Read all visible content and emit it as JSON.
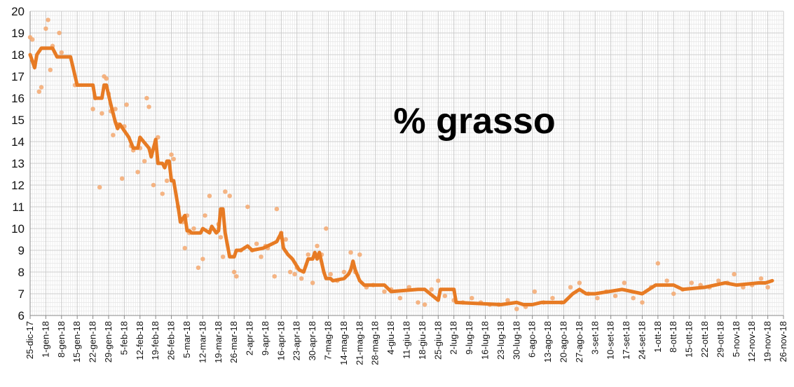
{
  "chart_data": {
    "type": "scatter",
    "title": "% grasso",
    "xlabel": "",
    "ylabel": "",
    "ylim": [
      6,
      20
    ],
    "xlim": [
      "2017-12-25",
      "2018-11-26"
    ],
    "grid": true,
    "y_ticks": [
      "6",
      "7",
      "8",
      "9",
      "10",
      "11",
      "12",
      "13",
      "14",
      "15",
      "16",
      "17",
      "18",
      "19",
      "20"
    ],
    "x_tick_dates": [
      "2017-12-25",
      "2018-01-01",
      "2018-01-08",
      "2018-01-15",
      "2018-01-22",
      "2018-01-29",
      "2018-02-05",
      "2018-02-12",
      "2018-02-19",
      "2018-02-26",
      "2018-03-05",
      "2018-03-12",
      "2018-03-19",
      "2018-03-26",
      "2018-04-02",
      "2018-04-09",
      "2018-04-16",
      "2018-04-23",
      "2018-04-30",
      "2018-05-07",
      "2018-05-14",
      "2018-05-21",
      "2018-05-28",
      "2018-06-04",
      "2018-06-11",
      "2018-06-18",
      "2018-06-25",
      "2018-07-02",
      "2018-07-09",
      "2018-07-16",
      "2018-07-23",
      "2018-07-30",
      "2018-08-06",
      "2018-08-13",
      "2018-08-20",
      "2018-08-27",
      "2018-09-03",
      "2018-09-10",
      "2018-09-17",
      "2018-09-24",
      "2018-10-01",
      "2018-10-08",
      "2018-10-15",
      "2018-10-22",
      "2018-10-29",
      "2018-11-05",
      "2018-11-12",
      "2018-11-19",
      "2018-11-26"
    ],
    "x_tick_labels": [
      "25-dic-17",
      "1-gen-18",
      "8-gen-18",
      "15-gen-18",
      "22-gen-18",
      "29-gen-18",
      "5-feb-18",
      "12-feb-18",
      "19-feb-18",
      "26-feb-18",
      "5-mar-18",
      "12-mar-18",
      "19-mar-18",
      "26-mar-18",
      "2-apr-18",
      "9-apr-18",
      "16-apr-18",
      "23-apr-18",
      "30-apr-18",
      "7-mag-18",
      "14-mag-18",
      "21-mag-18",
      "28-mag-18",
      "4-giu-18",
      "11-giu-18",
      "18-giu-18",
      "25-giu-18",
      "2-lug-18",
      "9-lug-18",
      "16-lug-18",
      "23-lug-18",
      "30-lug-18",
      "6-ago-18",
      "13-ago-18",
      "20-ago-18",
      "27-ago-18",
      "3-set-18",
      "10-set-18",
      "17-set-18",
      "24-set-18",
      "1-ott-18",
      "8-ott-18",
      "15-ott-18",
      "22-ott-18",
      "29-ott-18",
      "5-nov-18",
      "12-nov-18",
      "19-nov-18",
      "26-nov-18"
    ],
    "series": [
      {
        "kind": "points",
        "color": "#f5a86e",
        "x": [
          "2017-12-25",
          "2017-12-26",
          "2017-12-27",
          "2017-12-29",
          "2017-12-30",
          "2018-01-01",
          "2018-01-02",
          "2018-01-03",
          "2018-01-04",
          "2018-01-07",
          "2018-01-08",
          "2018-01-14",
          "2018-01-22",
          "2018-01-23",
          "2018-01-25",
          "2018-01-26",
          "2018-01-27",
          "2018-01-28",
          "2018-01-29",
          "2018-01-30",
          "2018-01-31",
          "2018-02-01",
          "2018-02-02",
          "2018-02-04",
          "2018-02-05",
          "2018-02-06",
          "2018-02-08",
          "2018-02-09",
          "2018-02-11",
          "2018-02-12",
          "2018-02-14",
          "2018-02-15",
          "2018-02-16",
          "2018-02-18",
          "2018-02-19",
          "2018-02-20",
          "2018-02-22",
          "2018-02-24",
          "2018-02-26",
          "2018-02-27",
          "2018-03-01",
          "2018-03-03",
          "2018-03-04",
          "2018-03-05",
          "2018-03-06",
          "2018-03-08",
          "2018-03-10",
          "2018-03-12",
          "2018-03-13",
          "2018-03-15",
          "2018-03-19",
          "2018-03-20",
          "2018-03-21",
          "2018-03-22",
          "2018-03-24",
          "2018-03-26",
          "2018-03-27",
          "2018-03-29",
          "2018-04-01",
          "2018-04-03",
          "2018-04-05",
          "2018-04-07",
          "2018-04-09",
          "2018-04-10",
          "2018-04-13",
          "2018-04-14",
          "2018-04-16",
          "2018-04-18",
          "2018-04-20",
          "2018-04-22",
          "2018-04-23",
          "2018-04-25",
          "2018-04-28",
          "2018-04-30",
          "2018-05-02",
          "2018-05-04",
          "2018-05-06",
          "2018-05-08",
          "2018-05-11",
          "2018-05-14",
          "2018-05-17",
          "2018-05-19",
          "2018-05-21",
          "2018-05-24",
          "2018-05-27",
          "2018-06-01",
          "2018-06-04",
          "2018-06-08",
          "2018-06-12",
          "2018-06-16",
          "2018-06-19",
          "2018-06-22",
          "2018-06-25",
          "2018-06-28",
          "2018-07-02",
          "2018-07-06",
          "2018-07-10",
          "2018-07-14",
          "2018-07-18",
          "2018-07-22",
          "2018-07-26",
          "2018-07-30",
          "2018-08-03",
          "2018-08-07",
          "2018-08-11",
          "2018-08-15",
          "2018-08-19",
          "2018-08-23",
          "2018-08-27",
          "2018-08-31",
          "2018-09-04",
          "2018-09-08",
          "2018-09-12",
          "2018-09-16",
          "2018-09-20",
          "2018-09-24",
          "2018-09-28",
          "2018-10-01",
          "2018-10-05",
          "2018-10-08",
          "2018-10-12",
          "2018-10-16",
          "2018-10-20",
          "2018-10-24",
          "2018-10-28",
          "2018-11-01",
          "2018-11-04",
          "2018-11-08",
          "2018-11-12",
          "2018-11-16",
          "2018-11-19"
        ],
        "y": [
          18.8,
          18.7,
          17.5,
          16.3,
          16.5,
          19.2,
          19.6,
          17.3,
          18.4,
          19.0,
          18.1,
          16.6,
          15.5,
          16.0,
          11.9,
          15.3,
          17.0,
          16.9,
          16.2,
          15.4,
          14.3,
          15.5,
          14.8,
          12.3,
          14.7,
          15.7,
          13.8,
          13.6,
          12.6,
          13.7,
          13.1,
          16.0,
          15.6,
          12.0,
          13.8,
          14.2,
          11.6,
          12.2,
          13.4,
          13.2,
          11.0,
          10.3,
          9.1,
          10.6,
          9.8,
          10.0,
          8.2,
          8.6,
          10.6,
          11.5,
          10.2,
          9.6,
          8.7,
          11.7,
          11.5,
          8.0,
          7.8,
          9.0,
          11.0,
          9.0,
          9.3,
          8.7,
          9.2,
          9.1,
          7.8,
          10.9,
          9.8,
          9.5,
          8.0,
          7.9,
          8.2,
          7.7,
          8.8,
          7.5,
          9.2,
          8.8,
          10.0,
          7.9,
          7.6,
          8.0,
          8.9,
          8.0,
          8.8,
          7.3,
          7.4,
          7.1,
          7.2,
          6.8,
          7.3,
          6.6,
          6.5,
          7.2,
          7.6,
          6.9,
          6.7,
          6.6,
          6.8,
          6.6,
          6.5,
          6.5,
          6.7,
          6.3,
          6.4,
          7.1,
          6.6,
          6.8,
          6.6,
          7.3,
          7.5,
          7.0,
          6.8,
          7.1,
          6.9,
          7.5,
          6.8,
          6.6,
          7.3,
          8.4,
          7.6,
          7.0,
          7.2,
          7.5,
          7.4,
          7.3,
          7.6,
          7.5,
          7.9,
          7.3,
          7.4,
          7.7,
          7.3
        ]
      },
      {
        "kind": "line",
        "color": "#e77b24",
        "x": [
          "2017-12-25",
          "2017-12-27",
          "2017-12-28",
          "2017-12-30",
          "2018-01-04",
          "2018-01-06",
          "2018-01-12",
          "2018-01-15",
          "2018-01-22",
          "2018-01-23",
          "2018-01-26",
          "2018-01-27",
          "2018-01-28",
          "2018-01-30",
          "2018-02-01",
          "2018-02-02",
          "2018-02-03",
          "2018-02-05",
          "2018-02-07",
          "2018-02-09",
          "2018-02-11",
          "2018-02-12",
          "2018-02-16",
          "2018-02-17",
          "2018-02-19",
          "2018-02-20",
          "2018-02-22",
          "2018-02-23",
          "2018-02-24",
          "2018-02-25",
          "2018-02-26",
          "2018-02-27",
          "2018-03-01",
          "2018-03-02",
          "2018-03-04",
          "2018-03-05",
          "2018-03-06",
          "2018-03-07",
          "2018-03-11",
          "2018-03-12",
          "2018-03-15",
          "2018-03-16",
          "2018-03-18",
          "2018-03-19",
          "2018-03-20",
          "2018-03-21",
          "2018-03-22",
          "2018-03-24",
          "2018-03-26",
          "2018-03-27",
          "2018-03-29",
          "2018-04-01",
          "2018-04-03",
          "2018-04-08",
          "2018-04-12",
          "2018-04-14",
          "2018-04-16",
          "2018-04-17",
          "2018-04-19",
          "2018-04-21",
          "2018-04-24",
          "2018-04-26",
          "2018-04-28",
          "2018-04-30",
          "2018-05-01",
          "2018-05-02",
          "2018-05-03",
          "2018-05-05",
          "2018-05-06",
          "2018-05-08",
          "2018-05-09",
          "2018-05-14",
          "2018-05-16",
          "2018-05-17",
          "2018-05-18",
          "2018-05-19",
          "2018-05-21",
          "2018-05-23",
          "2018-06-01",
          "2018-06-04",
          "2018-06-16",
          "2018-06-19",
          "2018-06-25",
          "2018-06-26",
          "2018-07-02",
          "2018-07-03",
          "2018-07-23",
          "2018-07-30",
          "2018-08-02",
          "2018-08-06",
          "2018-08-10",
          "2018-08-20",
          "2018-08-24",
          "2018-08-27",
          "2018-08-30",
          "2018-09-03",
          "2018-09-15",
          "2018-09-24",
          "2018-09-30",
          "2018-10-08",
          "2018-10-12",
          "2018-10-22",
          "2018-10-31",
          "2018-11-05",
          "2018-11-15",
          "2018-11-18",
          "2018-11-21"
        ],
        "y": [
          18.0,
          17.4,
          18.0,
          18.3,
          18.3,
          17.9,
          17.9,
          16.6,
          16.6,
          16.0,
          16.0,
          16.6,
          16.6,
          15.7,
          14.9,
          14.6,
          14.8,
          14.5,
          14.2,
          13.7,
          13.7,
          14.2,
          13.7,
          13.3,
          14.1,
          13.0,
          13.0,
          12.8,
          13.1,
          13.1,
          12.2,
          12.2,
          11.0,
          10.3,
          10.6,
          9.9,
          9.9,
          9.8,
          9.8,
          10.0,
          9.8,
          10.1,
          9.8,
          9.9,
          10.9,
          10.9,
          9.8,
          8.7,
          8.7,
          9.0,
          9.0,
          9.2,
          9.0,
          9.1,
          9.3,
          9.4,
          9.8,
          9.1,
          8.8,
          8.6,
          8.1,
          8.0,
          8.6,
          8.6,
          8.9,
          8.6,
          8.9,
          8.0,
          7.7,
          7.7,
          7.6,
          7.7,
          7.9,
          8.1,
          8.5,
          8.1,
          7.6,
          7.4,
          7.4,
          7.1,
          7.2,
          7.2,
          6.7,
          7.2,
          7.2,
          6.6,
          6.5,
          6.6,
          6.5,
          6.5,
          6.6,
          6.6,
          7.0,
          7.2,
          7.0,
          7.0,
          7.2,
          7.0,
          7.4,
          7.4,
          7.2,
          7.3,
          7.5,
          7.4,
          7.5,
          7.5,
          7.6
        ]
      }
    ]
  }
}
